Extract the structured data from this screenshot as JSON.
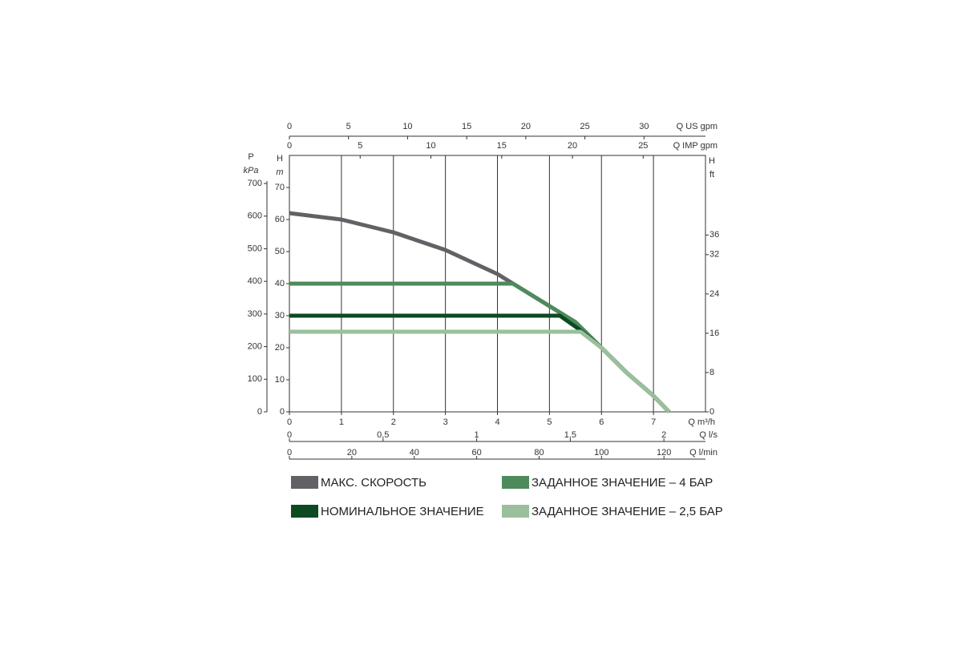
{
  "chart_data": {
    "type": "line",
    "xlabel": "Q m³/h",
    "xlim": [
      0,
      8
    ],
    "xticks": [
      0,
      1,
      2,
      3,
      4,
      5,
      6,
      7
    ],
    "ylabel": "H",
    "yunit": "m",
    "ylim": [
      0,
      80
    ],
    "yticks": [
      0,
      10,
      20,
      30,
      40,
      50,
      60,
      70
    ],
    "grid": "x",
    "secondary_x_axes": [
      {
        "label": "Q US gpm",
        "position": "top",
        "xlim": [
          0,
          35.2
        ],
        "xticks": [
          0,
          5,
          10,
          15,
          20,
          25,
          30
        ]
      },
      {
        "label": "Q IMP gpm",
        "position": "top",
        "xlim": [
          0,
          29.4
        ],
        "xticks": [
          0,
          5,
          10,
          15,
          20,
          25
        ]
      },
      {
        "label": "Q l/s",
        "position": "bottom",
        "xlim": [
          0,
          2.222
        ],
        "xticks": [
          0,
          {
            "value": 0.5,
            "label": "0,5"
          },
          1,
          {
            "value": 1.5,
            "label": "1,5"
          },
          2
        ]
      },
      {
        "label": "Q l/min",
        "position": "bottom",
        "xlim": [
          0,
          133.3
        ],
        "xticks": [
          0,
          20,
          40,
          60,
          80,
          100,
          120
        ]
      }
    ],
    "secondary_y_axes": [
      {
        "label": "P",
        "unit": "kPa",
        "position": "left",
        "ylim": [
          0,
          786
        ],
        "yticks": [
          0,
          100,
          200,
          300,
          400,
          500,
          600,
          700
        ]
      },
      {
        "label": "H",
        "unit": "ft",
        "position": "right",
        "ylim": [
          0,
          52.2
        ],
        "yticks": [
          0,
          8,
          16,
          24,
          32,
          36
        ]
      }
    ],
    "series": [
      {
        "name": "МАКС. СКОРОСТЬ",
        "color": "#616266",
        "x": [
          0,
          1,
          2,
          3,
          4,
          4.3,
          5,
          5.5,
          6,
          6.5,
          7,
          7.3
        ],
        "values": [
          62,
          60,
          56,
          50.5,
          43,
          40,
          33,
          28,
          20,
          12,
          5,
          0
        ]
      },
      {
        "name": "ЗАДАННОЕ ЗНАЧЕНИЕ – 4 БАР",
        "color": "#4e8a5c",
        "x": [
          0,
          4.3,
          5,
          5.5,
          6,
          6.5,
          7,
          7.3
        ],
        "values": [
          40,
          40,
          33,
          28,
          20,
          12,
          5,
          0
        ]
      },
      {
        "name": "НОМИНАЛЬНОЕ ЗНАЧЕНИЕ",
        "color": "#0d4a22",
        "x": [
          0,
          5.2,
          5.55,
          6,
          6.5,
          7,
          7.3
        ],
        "values": [
          30,
          30,
          26,
          20,
          12,
          5,
          0
        ]
      },
      {
        "name": "ЗАДАННОЕ ЗНАЧЕНИЕ – 2,5 БАР",
        "color": "#9bbf9c",
        "x": [
          0,
          5.6,
          6,
          6.5,
          7,
          7.3
        ],
        "values": [
          25,
          25,
          20,
          12,
          5,
          0
        ]
      }
    ]
  }
}
